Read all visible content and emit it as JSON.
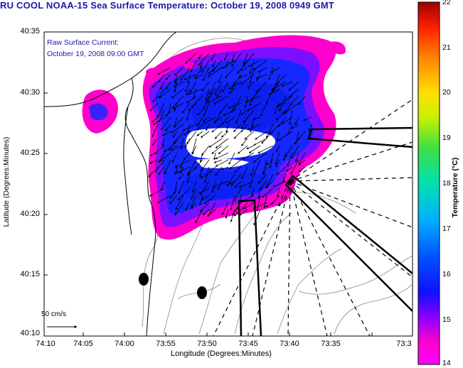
{
  "title": "RU COOL  NOAA-15  Sea Surface Temperature:  October 19, 2008 0949 GMT",
  "legend": {
    "line1": "Raw Surface Current:",
    "line2": "October 19, 2008 09:00 GMT"
  },
  "scale_label": "50 cm/s",
  "axes": {
    "xlabel": "Longitude (Degrees:Minutes)",
    "ylabel": "Latitude (Degrees:Minutes)",
    "xticks": [
      "74:10",
      "74:05",
      "74:00",
      "73:55",
      "73:50",
      "73:45",
      "73:40",
      "73:35",
      "73:3"
    ],
    "yticks": [
      "40:35",
      "40:30",
      "40:25",
      "40:20",
      "40:15",
      "40:10"
    ]
  },
  "colorbar": {
    "title": "Temperature (°C)",
    "ticks": [
      "22",
      "21",
      "20",
      "19",
      "18",
      "17",
      "16",
      "15",
      "14"
    ],
    "min": 14,
    "max": 22
  },
  "colors": {
    "title_text": "#1a1aa8",
    "sst_cold": "#ff00cc",
    "sst_mid": "#1530ff",
    "sst_warm": "#b00000"
  }
}
